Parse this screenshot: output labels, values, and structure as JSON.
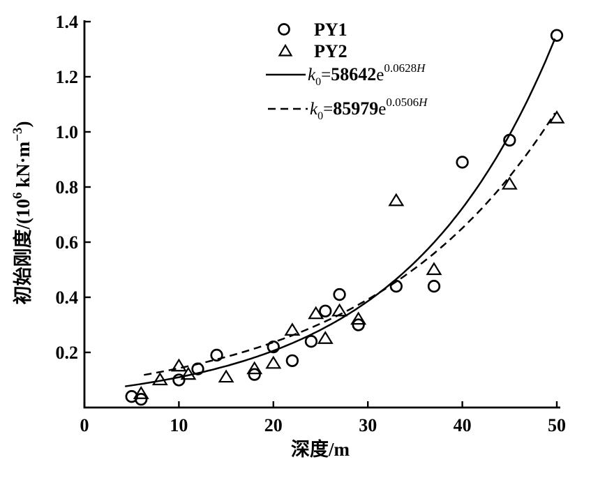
{
  "figure": {
    "background": "#ffffff",
    "axis_color": "#000000",
    "marker_color": "#000000"
  },
  "chart_data": {
    "type": "scatter",
    "title": "",
    "xlabel": "深度/m",
    "ylabel": "初始刚度/(10^6 kN·m^−3)",
    "ylabel_parts": {
      "pre": "初始刚度/(10",
      "sup1": "6",
      "mid": " kN·m",
      "sup2": "−3",
      "post": ")"
    },
    "xlim": [
      0,
      50
    ],
    "ylim": [
      0,
      1.4
    ],
    "xticks": [
      0,
      10,
      20,
      30,
      40,
      50
    ],
    "xtick_labels": [
      "0",
      "10",
      "20",
      "30",
      "40",
      "50"
    ],
    "yticks": [
      0.2,
      0.4,
      0.6,
      0.8,
      1.0,
      1.2,
      1.4
    ],
    "ytick_labels": [
      "0.2",
      "0.4",
      "0.6",
      "0.8",
      "1.0",
      "1.2",
      "1.4"
    ],
    "grid": false,
    "series": [
      {
        "name": "PY1",
        "marker": "circle",
        "points": [
          [
            5,
            0.04
          ],
          [
            6,
            0.03
          ],
          [
            10,
            0.1
          ],
          [
            12,
            0.14
          ],
          [
            14,
            0.19
          ],
          [
            18,
            0.12
          ],
          [
            20,
            0.22
          ],
          [
            22,
            0.17
          ],
          [
            24,
            0.24
          ],
          [
            25.5,
            0.35
          ],
          [
            27,
            0.41
          ],
          [
            29,
            0.3
          ],
          [
            33,
            0.44
          ],
          [
            37,
            0.44
          ],
          [
            40,
            0.89
          ],
          [
            45,
            0.97
          ],
          [
            50,
            1.35
          ]
        ]
      },
      {
        "name": "PY2",
        "marker": "triangle",
        "points": [
          [
            6,
            0.05
          ],
          [
            8,
            0.1
          ],
          [
            10,
            0.15
          ],
          [
            11,
            0.12
          ],
          [
            15,
            0.11
          ],
          [
            18,
            0.14
          ],
          [
            20,
            0.16
          ],
          [
            22,
            0.28
          ],
          [
            24.5,
            0.34
          ],
          [
            25.5,
            0.25
          ],
          [
            27,
            0.35
          ],
          [
            29,
            0.32
          ],
          [
            33,
            0.75
          ],
          [
            37,
            0.5
          ],
          [
            45,
            0.81
          ],
          [
            50,
            1.05
          ]
        ]
      }
    ],
    "fits": [
      {
        "name": "fit-PY1",
        "style": "solid",
        "coef": 58642,
        "rate": 0.0628,
        "h_start": 4.3,
        "h_end": 50,
        "label": "k0=58642e^0.0628H",
        "equation_parts": {
          "k": "k",
          "sub": "0",
          "eq": "=",
          "coef": "58642",
          "base": "e",
          "exp": "0.0628",
          "var": "H"
        }
      },
      {
        "name": "fit-PY2",
        "style": "dashed",
        "coef": 85979,
        "rate": 0.0506,
        "h_start": 6.3,
        "h_end": 50,
        "label": "k0=85979e^0.0506H",
        "equation_parts": {
          "k": "k",
          "sub": "0",
          "eq": "=",
          "coef": "85979",
          "base": "e",
          "exp": "0.0506",
          "var": "H"
        }
      }
    ],
    "legend": {
      "position": "top-center",
      "items": [
        {
          "type": "marker-circle",
          "label": "PY1"
        },
        {
          "type": "marker-triangle",
          "label": "PY2"
        },
        {
          "type": "line-solid",
          "label": "k0=58642e^0.0628H"
        },
        {
          "type": "line-dashed",
          "label": "k0=85979e^0.0506H"
        }
      ]
    }
  }
}
